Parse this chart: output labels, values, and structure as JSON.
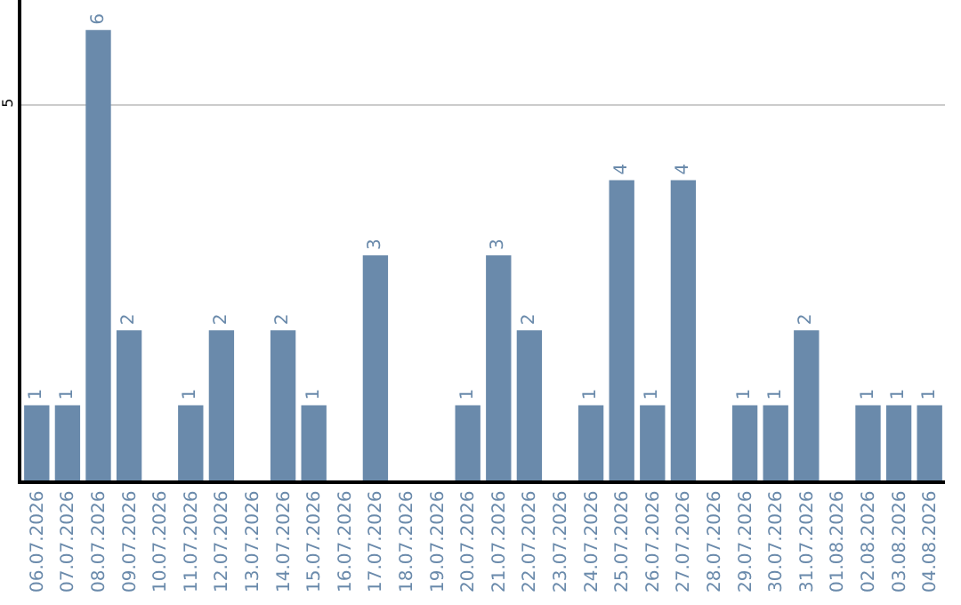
{
  "chart_data": {
    "type": "bar",
    "categories": [
      "06.07.2026",
      "07.07.2026",
      "08.07.2026",
      "09.07.2026",
      "10.07.2026",
      "11.07.2026",
      "12.07.2026",
      "13.07.2026",
      "14.07.2026",
      "15.07.2026",
      "16.07.2026",
      "17.07.2026",
      "18.07.2026",
      "19.07.2026",
      "20.07.2026",
      "21.07.2026",
      "22.07.2026",
      "23.07.2026",
      "24.07.2026",
      "25.07.2026",
      "26.07.2026",
      "27.07.2026",
      "28.07.2026",
      "29.07.2026",
      "30.07.2026",
      "31.07.2026",
      "01.08.2026",
      "02.08.2026",
      "03.08.2026",
      "04.08.2026"
    ],
    "values": [
      1,
      1,
      6,
      2,
      0,
      1,
      2,
      0,
      2,
      1,
      0,
      3,
      0,
      0,
      1,
      3,
      2,
      0,
      1,
      4,
      1,
      4,
      0,
      1,
      1,
      2,
      0,
      1,
      1,
      1
    ],
    "value_labels": [
      "1",
      "1",
      "6",
      "2",
      null,
      "1",
      "2",
      null,
      "2",
      "1",
      null,
      "3",
      null,
      null,
      "1",
      "3",
      "2",
      null,
      "1",
      "4",
      "1",
      "4",
      null,
      "1",
      "1",
      "2",
      null,
      "1",
      "1",
      "1"
    ],
    "color": "#6a8aab",
    "ylim": [
      0,
      6.4
    ],
    "yticks": [
      5
    ],
    "grid": "y",
    "legend": false
  }
}
